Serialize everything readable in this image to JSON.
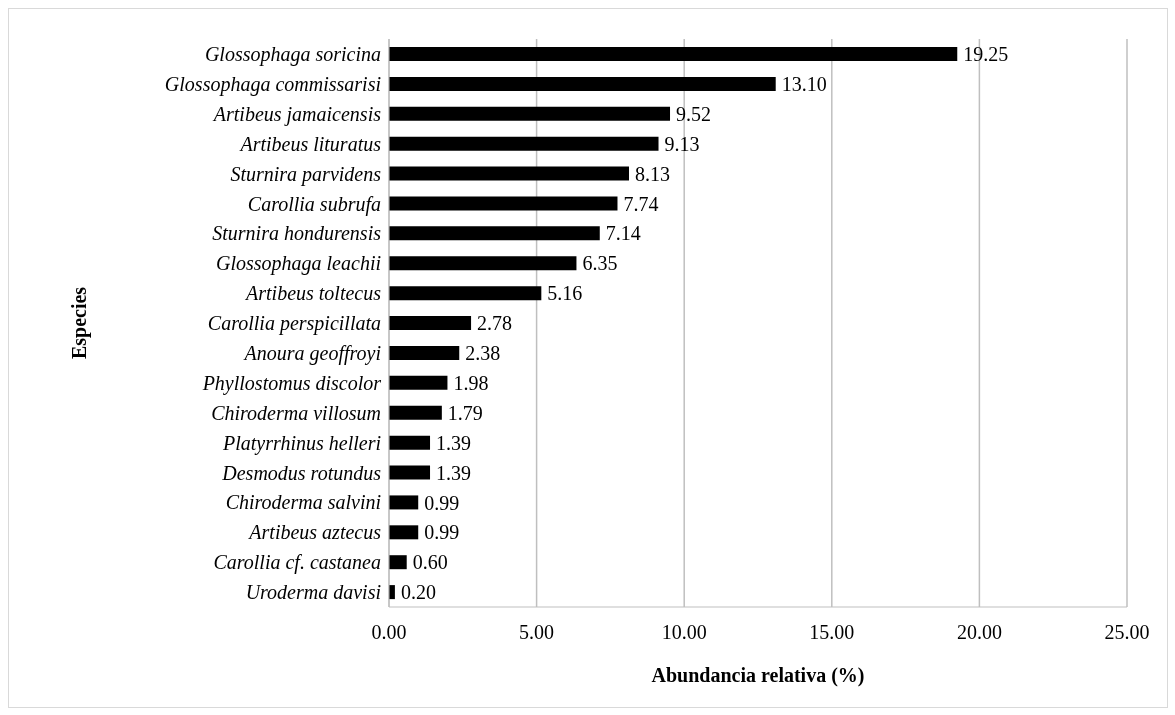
{
  "chart_data": {
    "type": "bar",
    "orientation": "horizontal",
    "xlabel": "Abundancia relativa (%)",
    "ylabel": "Especies",
    "categories": [
      "Glossophaga soricina",
      "Glossophaga commissarisi",
      "Artibeus jamaicensis",
      "Artibeus lituratus",
      "Sturnira parvidens",
      "Carollia subrufa",
      "Sturnira hondurensis",
      "Glossophaga leachii",
      "Artibeus toltecus",
      "Carollia perspicillata",
      "Anoura geoffroyi",
      "Phyllostomus discolor",
      "Chiroderma villosum",
      "Platyrrhinus helleri",
      "Desmodus rotundus",
      "Chiroderma salvini",
      "Artibeus aztecus",
      "Carollia cf. castanea",
      "Uroderma davisi"
    ],
    "values": [
      19.25,
      13.1,
      9.52,
      9.13,
      8.13,
      7.74,
      7.14,
      6.35,
      5.16,
      2.78,
      2.38,
      1.98,
      1.79,
      1.39,
      1.39,
      0.99,
      0.99,
      0.6,
      0.2
    ],
    "value_labels": [
      "19.25",
      "13.10",
      "9.52",
      "9.13",
      "8.13",
      "7.74",
      "7.14",
      "6.35",
      "5.16",
      "2.78",
      "2.38",
      "1.98",
      "1.79",
      "1.39",
      "1.39",
      "0.99",
      "0.99",
      "0.60",
      "0.20"
    ],
    "color": "#000000",
    "xlim": [
      0,
      25
    ],
    "xticks": [
      {
        "value": 0,
        "label": "0.00"
      },
      {
        "value": 5,
        "label": "5.00"
      },
      {
        "value": 10,
        "label": "10.00"
      },
      {
        "value": 15,
        "label": "15.00"
      },
      {
        "value": 20,
        "label": "20.00"
      },
      {
        "value": 25,
        "label": "25.00"
      }
    ],
    "grid": "x"
  }
}
